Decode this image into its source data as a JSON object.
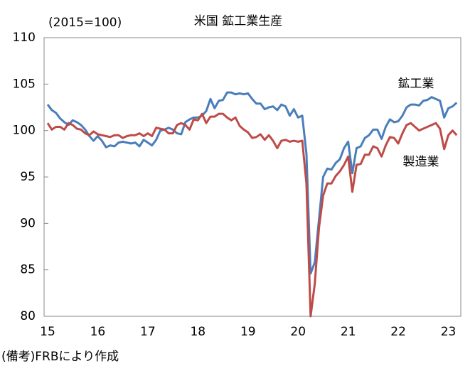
{
  "chart_data": {
    "type": "line",
    "title": "米国 鉱工業生産",
    "subtitle": "(2015=100)",
    "note": "(備考)FRBにより作成",
    "categories": [
      "15",
      null,
      null,
      null,
      null,
      null,
      null,
      null,
      null,
      null,
      null,
      null,
      "16",
      null,
      null,
      null,
      null,
      null,
      null,
      null,
      null,
      null,
      null,
      null,
      "17",
      null,
      null,
      null,
      null,
      null,
      null,
      null,
      null,
      null,
      null,
      null,
      "18",
      null,
      null,
      null,
      null,
      null,
      null,
      null,
      null,
      null,
      null,
      null,
      "19",
      null,
      null,
      null,
      null,
      null,
      null,
      null,
      null,
      null,
      null,
      null,
      "20",
      null,
      null,
      null,
      null,
      null,
      null,
      null,
      null,
      null,
      null,
      null,
      "21",
      null,
      null,
      null,
      null,
      null,
      null,
      null,
      null,
      null,
      null,
      null,
      "22",
      null,
      null,
      null,
      null,
      null,
      null,
      null,
      null,
      null,
      null,
      null,
      "23",
      null,
      null
    ],
    "series": [
      {
        "name": "鉱工業",
        "color": "#4a7ebb",
        "values": [
          102.8,
          102.2,
          101.9,
          101.3,
          100.9,
          100.6,
          101.1,
          100.9,
          100.6,
          100.1,
          99.4,
          98.9,
          99.4,
          98.9,
          98.2,
          98.4,
          98.3,
          98.7,
          98.8,
          98.7,
          98.6,
          98.7,
          98.3,
          99.0,
          98.7,
          98.4,
          99.0,
          100.0,
          100.1,
          100.3,
          100.1,
          99.7,
          99.6,
          100.9,
          101.2,
          101.4,
          101.4,
          101.6,
          102.1,
          103.4,
          102.4,
          103.2,
          103.3,
          104.1,
          104.1,
          103.9,
          104.0,
          103.9,
          104.0,
          103.4,
          102.9,
          102.9,
          102.3,
          102.5,
          102.6,
          102.2,
          102.8,
          102.6,
          101.6,
          102.3,
          101.4,
          101.6,
          97.5,
          84.6,
          85.8,
          90.4,
          95.0,
          95.9,
          95.8,
          96.5,
          96.9,
          98.1,
          98.8,
          95.4,
          98.1,
          98.3,
          99.2,
          99.5,
          100.1,
          100.1,
          99.1,
          100.4,
          101.2,
          100.9,
          101.0,
          101.6,
          102.5,
          102.8,
          102.8,
          102.7,
          103.2,
          103.3,
          103.6,
          103.4,
          103.2,
          101.4,
          102.4,
          102.6,
          103.0
        ]
      },
      {
        "name": "製造業",
        "color": "#be4b48",
        "values": [
          100.8,
          100.1,
          100.4,
          100.4,
          100.1,
          100.8,
          100.6,
          100.2,
          100.1,
          99.7,
          99.5,
          99.9,
          99.6,
          99.5,
          99.4,
          99.3,
          99.5,
          99.5,
          99.2,
          99.4,
          99.5,
          99.5,
          99.7,
          99.4,
          99.7,
          99.4,
          100.3,
          100.2,
          100.1,
          99.7,
          99.7,
          100.6,
          100.8,
          100.6,
          100.1,
          101.2,
          101.1,
          101.8,
          100.8,
          101.5,
          101.5,
          101.8,
          101.8,
          101.4,
          101.1,
          101.4,
          100.5,
          100.1,
          99.8,
          99.2,
          99.3,
          99.6,
          99.0,
          99.5,
          98.9,
          98.1,
          98.9,
          99.0,
          98.8,
          98.9,
          98.8,
          98.9,
          94.3,
          80.0,
          83.5,
          89.5,
          93.0,
          94.3,
          94.3,
          95.1,
          95.6,
          96.3,
          97.2,
          93.4,
          96.3,
          96.4,
          97.4,
          97.4,
          98.3,
          98.1,
          97.2,
          98.4,
          99.3,
          99.2,
          98.6,
          99.7,
          100.6,
          100.8,
          100.4,
          100.0,
          100.2,
          100.4,
          100.6,
          100.8,
          100.2,
          98.0,
          99.5,
          100.0,
          99.5
        ]
      }
    ],
    "ylim": [
      80,
      110
    ],
    "yticks": [
      80,
      85,
      90,
      95,
      100,
      105,
      110
    ],
    "grid": false
  }
}
